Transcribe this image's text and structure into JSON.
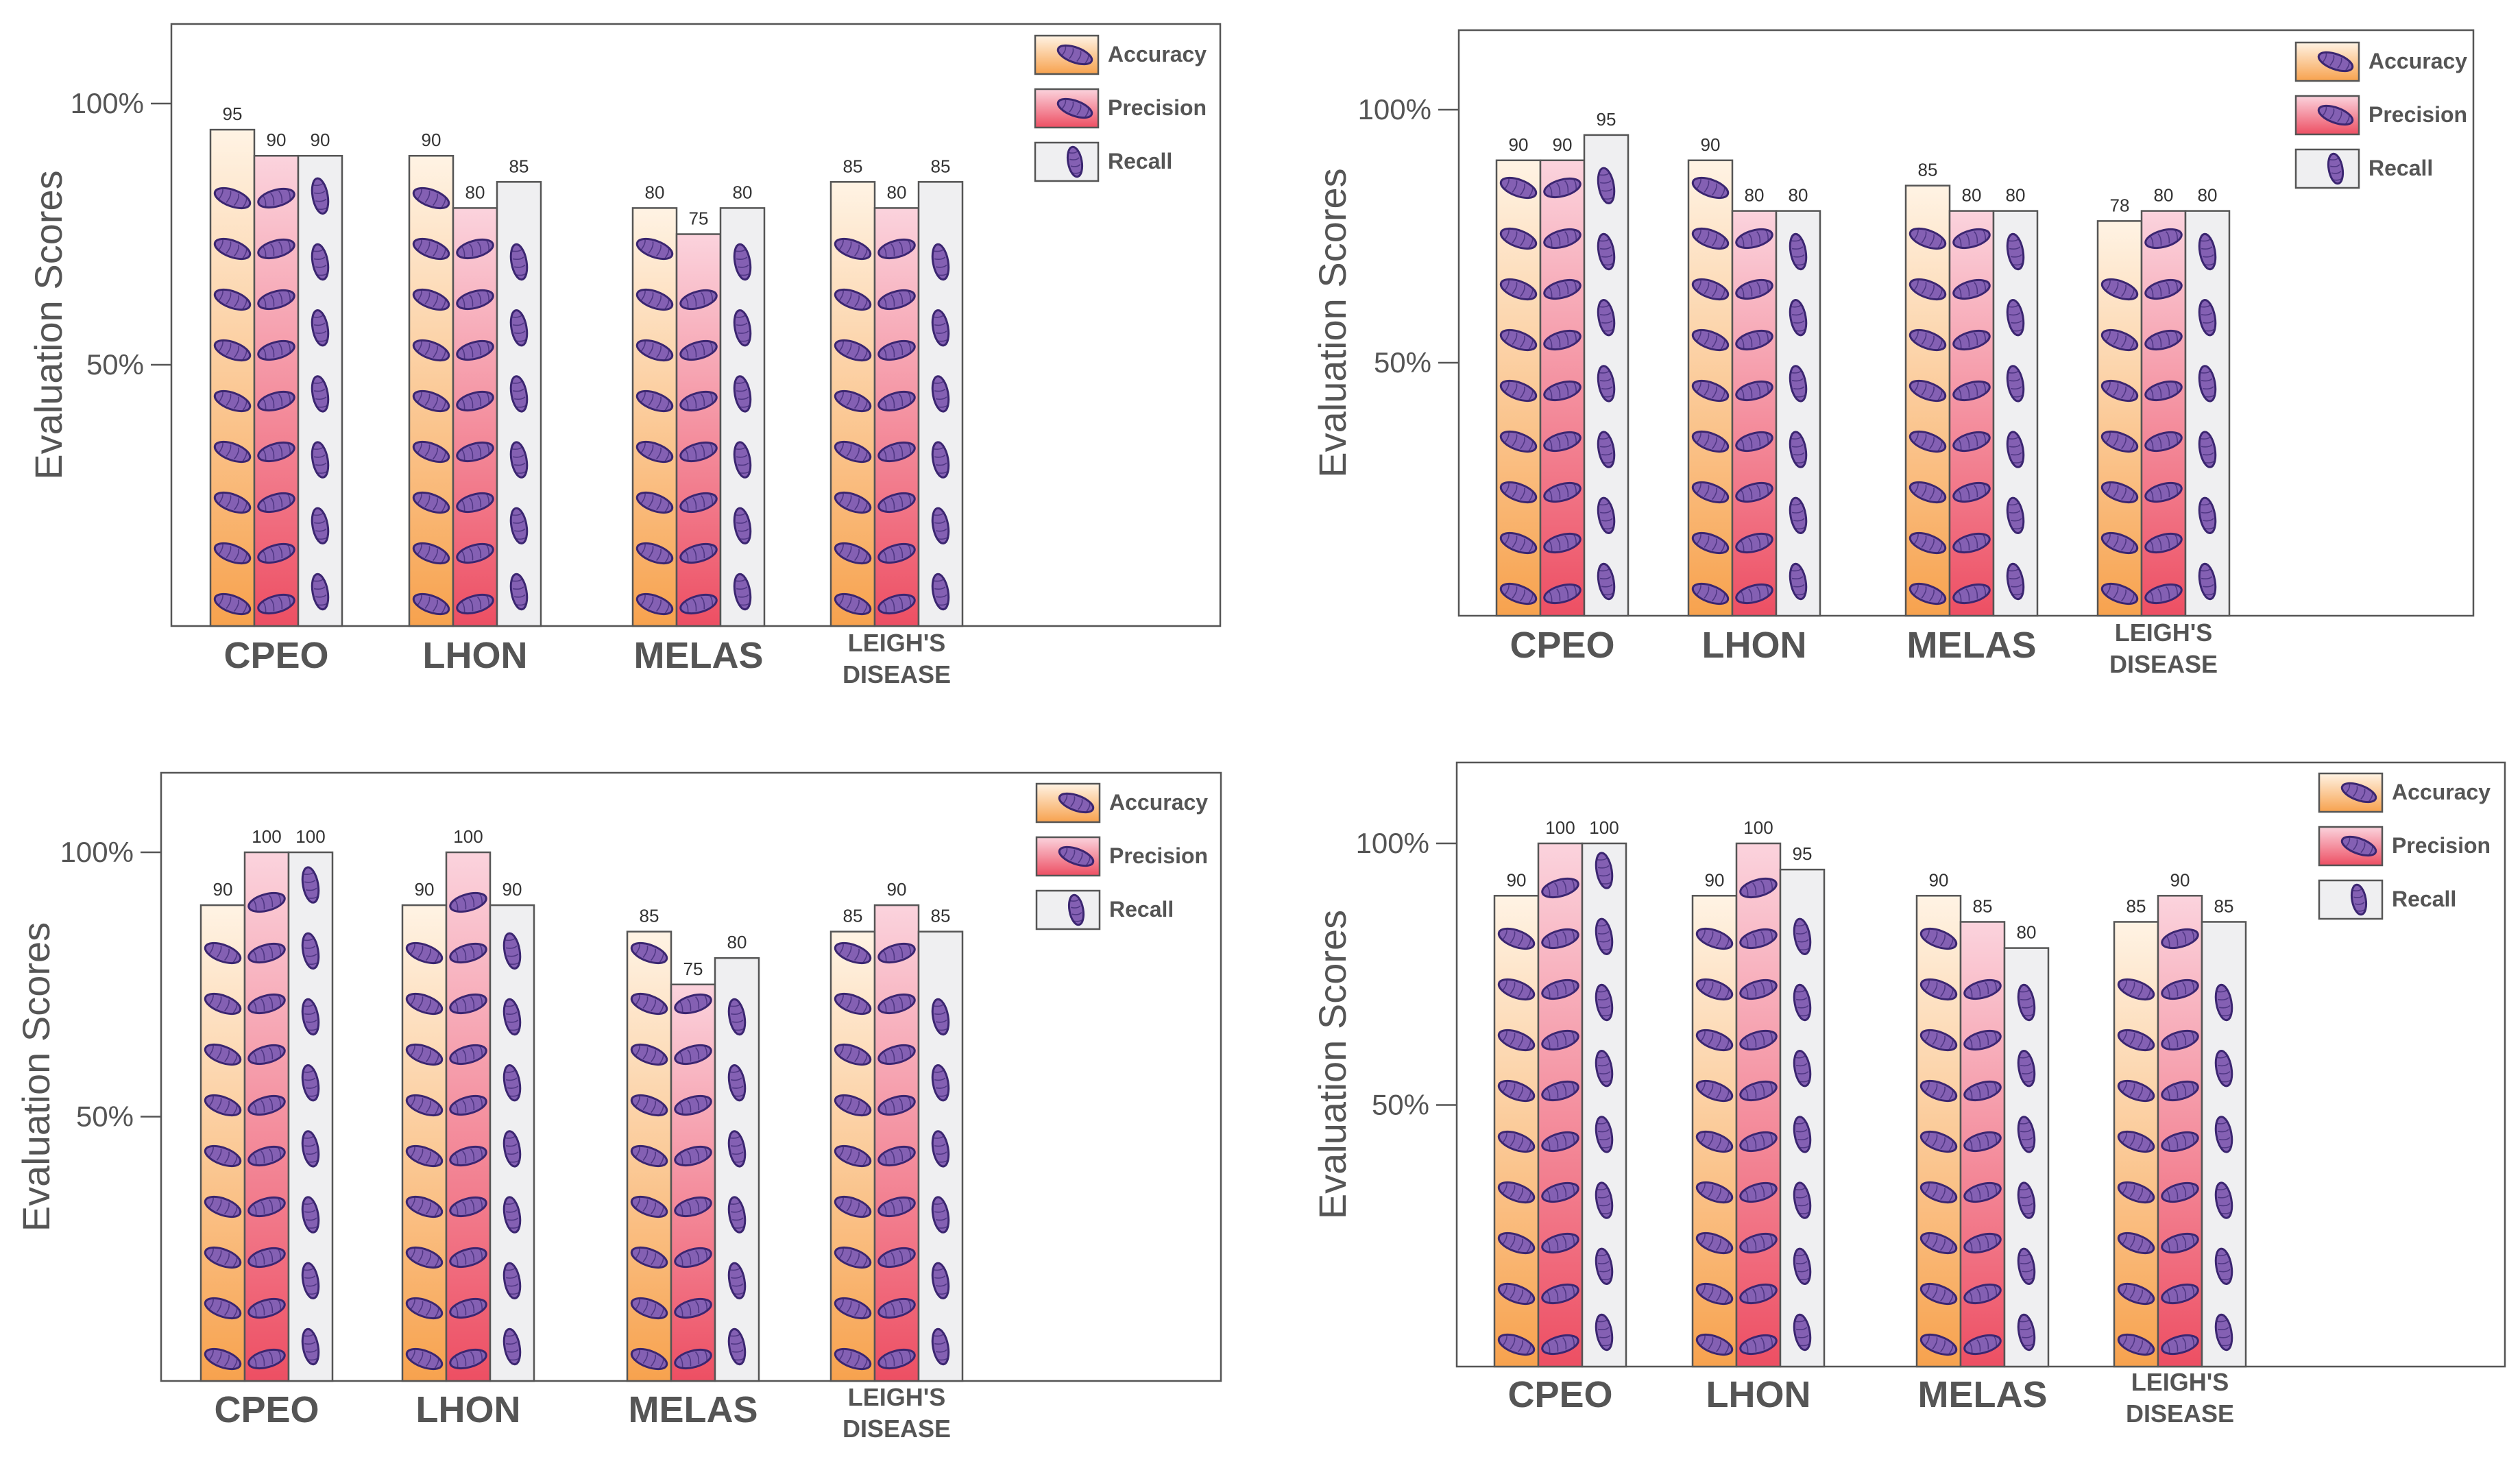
{
  "colors": {
    "accuracy_top": "#fff3e4",
    "accuracy_bottom": "#f7a24e",
    "precision_top": "#fbd3dd",
    "precision_bottom": "#ed4f63",
    "recall": "#efeff1",
    "mito_fill": "#8460b3",
    "mito_stroke": "#3b2670",
    "frame": "#555555",
    "text": "#555555"
  },
  "chart_data": [
    {
      "type": "bar",
      "ylabel": "Evaluation Scores",
      "yticks": [
        {
          "value": 100,
          "label": "100%"
        },
        {
          "value": 50,
          "label": "50%"
        }
      ],
      "categories": [
        {
          "line1": "CPEO",
          "line2": ""
        },
        {
          "line1": "LHON",
          "line2": ""
        },
        {
          "line1": "MELAS",
          "line2": ""
        },
        {
          "line1": "LEIGH'S",
          "line2": "DISEASE"
        }
      ],
      "series": [
        {
          "name": "Accuracy",
          "values": [
            95,
            90,
            80,
            85
          ]
        },
        {
          "name": "Precision",
          "values": [
            90,
            80,
            75,
            80
          ]
        },
        {
          "name": "Recall",
          "values": [
            90,
            85,
            80,
            85
          ]
        }
      ],
      "legend": [
        "Accuracy",
        "Precision",
        "Recall"
      ],
      "legend_position": "top-right"
    },
    {
      "type": "bar",
      "ylabel": "Evaluation Scores",
      "yticks": [
        {
          "value": 100,
          "label": "100%"
        },
        {
          "value": 50,
          "label": "50%"
        }
      ],
      "categories": [
        {
          "line1": "CPEO",
          "line2": ""
        },
        {
          "line1": "LHON",
          "line2": ""
        },
        {
          "line1": "MELAS",
          "line2": ""
        },
        {
          "line1": "LEIGH'S",
          "line2": "DISEASE"
        }
      ],
      "series": [
        {
          "name": "Accuracy",
          "values": [
            90,
            90,
            85,
            78
          ]
        },
        {
          "name": "Precision",
          "values": [
            90,
            80,
            80,
            80
          ]
        },
        {
          "name": "Recall",
          "values": [
            95,
            80,
            80,
            80
          ]
        }
      ],
      "legend": [
        "Accuracy",
        "Precision",
        "Recall"
      ],
      "legend_position": "top-right"
    },
    {
      "type": "bar",
      "ylabel": "Evaluation Scores",
      "yticks": [
        {
          "value": 100,
          "label": "100%"
        },
        {
          "value": 50,
          "label": "50%"
        }
      ],
      "categories": [
        {
          "line1": "CPEO",
          "line2": ""
        },
        {
          "line1": "LHON",
          "line2": ""
        },
        {
          "line1": "MELAS",
          "line2": ""
        },
        {
          "line1": "LEIGH'S",
          "line2": "DISEASE"
        }
      ],
      "series": [
        {
          "name": "Accuracy",
          "values": [
            90,
            90,
            85,
            85
          ]
        },
        {
          "name": "Precision",
          "values": [
            100,
            100,
            75,
            90
          ]
        },
        {
          "name": "Recall",
          "values": [
            100,
            90,
            80,
            85
          ]
        }
      ],
      "legend": [
        "Accuracy",
        "Precision",
        "Recall"
      ],
      "legend_position": "top-right"
    },
    {
      "type": "bar",
      "ylabel": "Evaluation Scores",
      "yticks": [
        {
          "value": 100,
          "label": "100%"
        },
        {
          "value": 50,
          "label": "50%"
        }
      ],
      "categories": [
        {
          "line1": "CPEO",
          "line2": ""
        },
        {
          "line1": "LHON",
          "line2": ""
        },
        {
          "line1": "MELAS",
          "line2": ""
        },
        {
          "line1": "LEIGH'S",
          "line2": "DISEASE"
        }
      ],
      "series": [
        {
          "name": "Accuracy",
          "values": [
            90,
            90,
            90,
            85
          ]
        },
        {
          "name": "Precision",
          "values": [
            100,
            100,
            85,
            90
          ]
        },
        {
          "name": "Recall",
          "values": [
            100,
            95,
            80,
            85
          ]
        }
      ],
      "legend": [
        "Accuracy",
        "Precision",
        "Recall"
      ],
      "legend_position": "top-right"
    }
  ]
}
